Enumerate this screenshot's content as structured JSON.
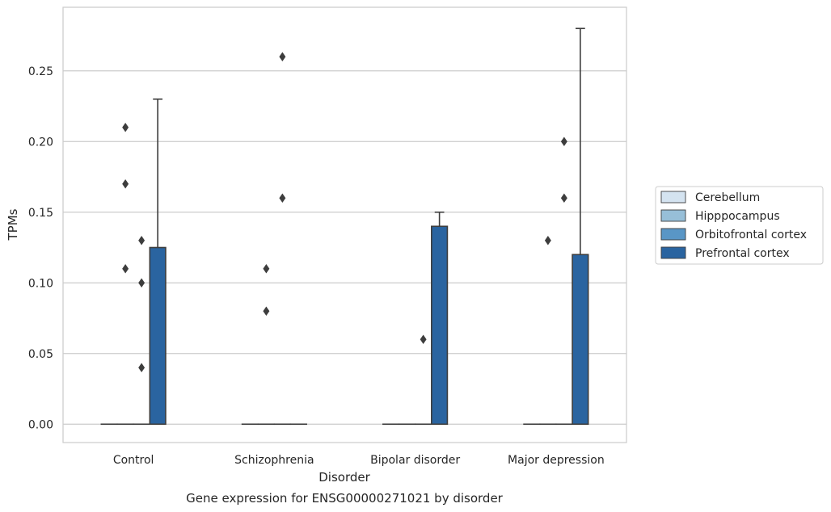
{
  "chart_data": {
    "type": "box",
    "xlabel": "Disorder",
    "ylabel": "TPMs",
    "caption": "Gene expression for ENSG00000271021 by disorder",
    "categories": [
      "Control",
      "Schizophrenia",
      "Bipolar disorder",
      "Major depression"
    ],
    "ylim": [
      -0.013,
      0.295
    ],
    "yticks": [
      0.0,
      0.05,
      0.1,
      0.15,
      0.2,
      0.25
    ],
    "ytick_labels": [
      "0.00",
      "0.05",
      "0.10",
      "0.15",
      "0.20",
      "0.25"
    ],
    "grid": true,
    "legend_position": "right",
    "series": [
      {
        "name": "Cerebellum",
        "color": "#d4e3f0",
        "boxes": [
          {
            "category": "Control",
            "q1": 0,
            "median": 0,
            "q3": 0,
            "whisker_low": 0,
            "whisker_high": 0,
            "outliers": []
          },
          {
            "category": "Schizophrenia",
            "q1": 0,
            "median": 0,
            "q3": 0,
            "whisker_low": 0,
            "whisker_high": 0,
            "outliers": []
          },
          {
            "category": "Bipolar disorder",
            "q1": 0,
            "median": 0,
            "q3": 0,
            "whisker_low": 0,
            "whisker_high": 0,
            "outliers": []
          },
          {
            "category": "Major depression",
            "q1": 0,
            "median": 0,
            "q3": 0,
            "whisker_low": 0,
            "whisker_high": 0,
            "outliers": []
          }
        ]
      },
      {
        "name": "Hipppocampus",
        "color": "#97bfd8",
        "boxes": [
          {
            "category": "Control",
            "q1": 0,
            "median": 0,
            "q3": 0,
            "whisker_low": 0,
            "whisker_high": 0,
            "outliers": [
              0.11,
              0.21,
              0.17
            ]
          },
          {
            "category": "Schizophrenia",
            "q1": 0,
            "median": 0,
            "q3": 0,
            "whisker_low": 0,
            "whisker_high": 0,
            "outliers": [
              0.11,
              0.08
            ]
          },
          {
            "category": "Bipolar disorder",
            "q1": 0,
            "median": 0,
            "q3": 0,
            "whisker_low": 0,
            "whisker_high": 0,
            "outliers": []
          },
          {
            "category": "Major depression",
            "q1": 0,
            "median": 0,
            "q3": 0,
            "whisker_low": 0,
            "whisker_high": 0,
            "outliers": [
              0.13
            ]
          }
        ]
      },
      {
        "name": "Orbitofrontal cortex",
        "color": "#5996c6",
        "boxes": [
          {
            "category": "Control",
            "q1": 0,
            "median": 0,
            "q3": 0,
            "whisker_low": 0,
            "whisker_high": 0,
            "outliers": [
              0.13,
              0.1,
              0.04
            ]
          },
          {
            "category": "Schizophrenia",
            "q1": 0,
            "median": 0,
            "q3": 0,
            "whisker_low": 0,
            "whisker_high": 0,
            "outliers": [
              0.26,
              0.16
            ]
          },
          {
            "category": "Bipolar disorder",
            "q1": 0,
            "median": 0,
            "q3": 0,
            "whisker_low": 0,
            "whisker_high": 0,
            "outliers": [
              0.06
            ]
          },
          {
            "category": "Major depression",
            "q1": 0,
            "median": 0,
            "q3": 0,
            "whisker_low": 0,
            "whisker_high": 0,
            "outliers": [
              0.16,
              0.2
            ]
          }
        ]
      },
      {
        "name": "Prefrontal cortex",
        "color": "#2a64a0",
        "boxes": [
          {
            "category": "Control",
            "q1": 0,
            "median": 0,
            "q3": 0.125,
            "whisker_low": 0,
            "whisker_high": 0.23,
            "outliers": []
          },
          {
            "category": "Schizophrenia",
            "q1": 0,
            "median": 0,
            "q3": 0,
            "whisker_low": 0,
            "whisker_high": 0,
            "outliers": []
          },
          {
            "category": "Bipolar disorder",
            "q1": 0,
            "median": 0,
            "q3": 0.14,
            "whisker_low": 0,
            "whisker_high": 0.15,
            "outliers": []
          },
          {
            "category": "Major depression",
            "q1": 0,
            "median": 0,
            "q3": 0.12,
            "whisker_low": 0,
            "whisker_high": 0.28,
            "outliers": []
          }
        ]
      }
    ]
  }
}
